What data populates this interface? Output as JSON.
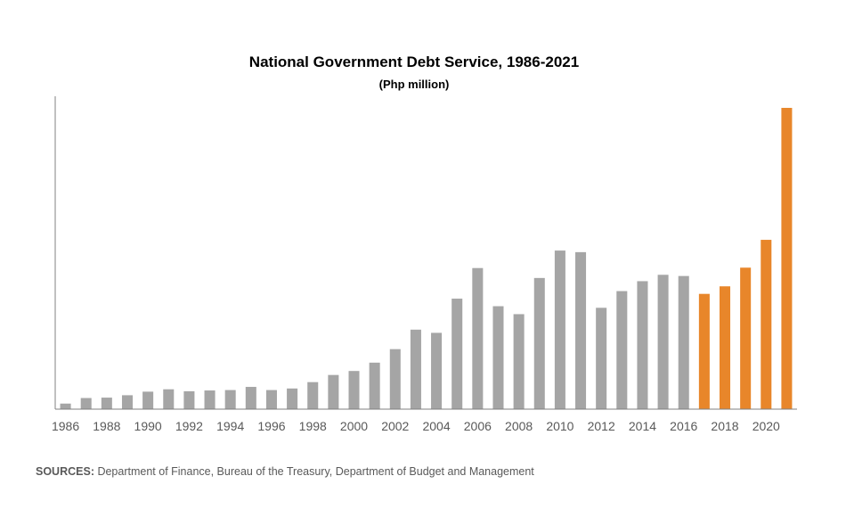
{
  "chart_data": {
    "type": "bar",
    "title": "National Government Debt Service, 1986-2021",
    "subtitle": "(Php million)",
    "xlabel": "",
    "ylabel": "",
    "categories": [
      "1986",
      "1987",
      "1988",
      "1989",
      "1990",
      "1991",
      "1992",
      "1993",
      "1994",
      "1995",
      "1996",
      "1997",
      "1998",
      "1999",
      "2000",
      "2001",
      "2002",
      "2003",
      "2004",
      "2005",
      "2006",
      "2007",
      "2008",
      "2009",
      "2010",
      "2011",
      "2012",
      "2013",
      "2014",
      "2015",
      "2016",
      "2017",
      "2018",
      "2019",
      "2020",
      "2021"
    ],
    "tick_labels": [
      "1986",
      "1988",
      "1990",
      "1992",
      "1994",
      "1996",
      "1998",
      "2000",
      "2002",
      "2004",
      "2006",
      "2008",
      "2010",
      "2012",
      "2014",
      "2016",
      "2018",
      "2020"
    ],
    "values": [
      14000,
      28000,
      29000,
      35000,
      44000,
      50000,
      45000,
      47000,
      48000,
      56000,
      48000,
      52000,
      68000,
      86000,
      96000,
      117000,
      151000,
      200000,
      192000,
      278000,
      355000,
      259000,
      239000,
      330000,
      399000,
      395000,
      255000,
      297000,
      322000,
      338000,
      335000,
      290000,
      309000,
      356000,
      426000,
      758000
    ],
    "colors": [
      "#a5a5a5",
      "#a5a5a5",
      "#a5a5a5",
      "#a5a5a5",
      "#a5a5a5",
      "#a5a5a5",
      "#a5a5a5",
      "#a5a5a5",
      "#a5a5a5",
      "#a5a5a5",
      "#a5a5a5",
      "#a5a5a5",
      "#a5a5a5",
      "#a5a5a5",
      "#a5a5a5",
      "#a5a5a5",
      "#a5a5a5",
      "#a5a5a5",
      "#a5a5a5",
      "#a5a5a5",
      "#a5a5a5",
      "#a5a5a5",
      "#a5a5a5",
      "#a5a5a5",
      "#a5a5a5",
      "#a5a5a5",
      "#a5a5a5",
      "#a5a5a5",
      "#a5a5a5",
      "#a5a5a5",
      "#a5a5a5",
      "#e8862a",
      "#e8862a",
      "#e8862a",
      "#e8862a",
      "#e8862a"
    ],
    "ylim": [
      0,
      850000
    ],
    "grid": false,
    "legend": "none"
  },
  "sources": {
    "label": "SOURCES:",
    "text": " Department of Finance, Bureau of the Treasury, Department of Budget and Management"
  }
}
